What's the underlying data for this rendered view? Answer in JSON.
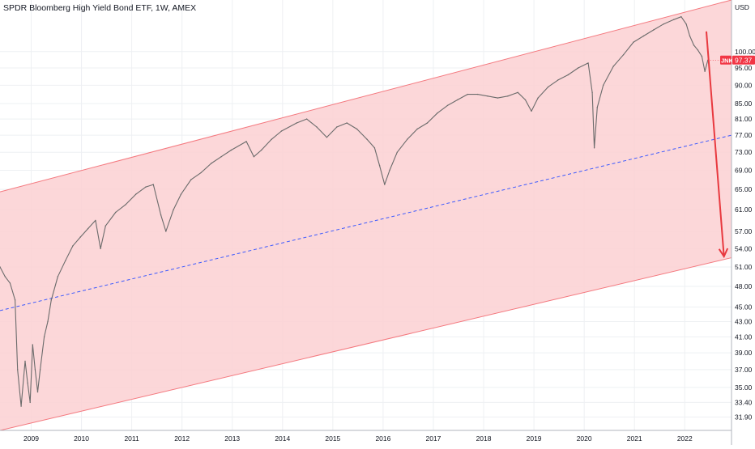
{
  "header": {
    "title": "SPDR Bloomberg High Yield Bond ETF, 1W, AMEX"
  },
  "price_scale": {
    "unit": "USD"
  },
  "last_price_tag": {
    "symbol": "JNK",
    "price": "97.37",
    "color": "#f23645"
  },
  "colors": {
    "channel_fill": "#fbd0d2",
    "channel_line": "#f4797f",
    "midline": "#3d5afe",
    "arrow": "#e8393f",
    "candles": "#6b6b6b",
    "grid": "#eef0f3"
  },
  "chart_data": {
    "type": "line",
    "title": "SPDR Bloomberg High Yield Bond ETF, 1W, AMEX",
    "xlabel": "",
    "ylabel": "USD",
    "scale": "log",
    "ylim": [
      30.6,
      117.5
    ],
    "xlim": [
      2008.4,
      2022.95
    ],
    "grid": true,
    "x_ticks": [
      "2009",
      "2010",
      "2011",
      "2012",
      "2013",
      "2014",
      "2015",
      "2016",
      "2017",
      "2018",
      "2019",
      "2020",
      "2021",
      "2022"
    ],
    "y_ticks": [
      "100.00",
      "95.00",
      "90.00",
      "85.00",
      "81.00",
      "77.00",
      "73.00",
      "69.00",
      "65.00",
      "61.00",
      "57.00",
      "54.00",
      "51.00",
      "48.00",
      "45.00",
      "43.00",
      "41.00",
      "39.00",
      "37.00",
      "35.00",
      "33.40",
      "31.90"
    ],
    "series": [
      {
        "values": [
          [
            2008.4,
            51.0
          ],
          [
            2008.5,
            49.5
          ],
          [
            2008.6,
            48.5
          ],
          [
            2008.7,
            46.0
          ],
          [
            2008.75,
            37.0
          ],
          [
            2008.82,
            33.0
          ],
          [
            2008.9,
            38.0
          ],
          [
            2008.95,
            35.5
          ],
          [
            2009.0,
            33.4
          ],
          [
            2009.05,
            40.0
          ],
          [
            2009.1,
            37.0
          ],
          [
            2009.15,
            34.5
          ],
          [
            2009.2,
            37.0
          ],
          [
            2009.28,
            41.0
          ],
          [
            2009.35,
            43.0
          ],
          [
            2009.42,
            46.0
          ],
          [
            2009.55,
            49.5
          ],
          [
            2009.7,
            52.0
          ],
          [
            2009.85,
            54.5
          ],
          [
            2010.0,
            56.0
          ],
          [
            2010.15,
            57.5
          ],
          [
            2010.3,
            59.0
          ],
          [
            2010.4,
            54.0
          ],
          [
            2010.5,
            58.0
          ],
          [
            2010.7,
            60.5
          ],
          [
            2010.9,
            62.0
          ],
          [
            2011.1,
            64.0
          ],
          [
            2011.3,
            65.5
          ],
          [
            2011.45,
            66.0
          ],
          [
            2011.6,
            60.0
          ],
          [
            2011.7,
            57.0
          ],
          [
            2011.85,
            61.0
          ],
          [
            2012.0,
            64.0
          ],
          [
            2012.2,
            67.0
          ],
          [
            2012.4,
            68.5
          ],
          [
            2012.6,
            70.5
          ],
          [
            2012.8,
            72.0
          ],
          [
            2013.0,
            73.5
          ],
          [
            2013.3,
            75.5
          ],
          [
            2013.45,
            72.0
          ],
          [
            2013.6,
            73.5
          ],
          [
            2013.8,
            76.0
          ],
          [
            2014.0,
            78.0
          ],
          [
            2014.3,
            80.0
          ],
          [
            2014.5,
            81.0
          ],
          [
            2014.7,
            79.0
          ],
          [
            2014.9,
            76.5
          ],
          [
            2015.1,
            79.0
          ],
          [
            2015.3,
            80.0
          ],
          [
            2015.5,
            78.5
          ],
          [
            2015.7,
            76.0
          ],
          [
            2015.85,
            74.0
          ],
          [
            2015.95,
            70.0
          ],
          [
            2016.05,
            66.0
          ],
          [
            2016.15,
            69.0
          ],
          [
            2016.3,
            73.0
          ],
          [
            2016.5,
            76.0
          ],
          [
            2016.7,
            78.5
          ],
          [
            2016.9,
            80.0
          ],
          [
            2017.1,
            82.5
          ],
          [
            2017.3,
            84.5
          ],
          [
            2017.5,
            86.0
          ],
          [
            2017.7,
            87.5
          ],
          [
            2017.9,
            87.5
          ],
          [
            2018.1,
            87.0
          ],
          [
            2018.3,
            86.5
          ],
          [
            2018.5,
            87.0
          ],
          [
            2018.7,
            88.0
          ],
          [
            2018.85,
            86.0
          ],
          [
            2018.97,
            83.0
          ],
          [
            2019.1,
            86.5
          ],
          [
            2019.3,
            89.5
          ],
          [
            2019.5,
            91.5
          ],
          [
            2019.7,
            93.0
          ],
          [
            2019.9,
            95.0
          ],
          [
            2020.1,
            96.5
          ],
          [
            2020.18,
            88.0
          ],
          [
            2020.22,
            74.0
          ],
          [
            2020.28,
            84.0
          ],
          [
            2020.4,
            90.0
          ],
          [
            2020.6,
            95.5
          ],
          [
            2020.8,
            99.0
          ],
          [
            2021.0,
            103.0
          ],
          [
            2021.2,
            105.0
          ],
          [
            2021.4,
            107.0
          ],
          [
            2021.6,
            109.0
          ],
          [
            2021.8,
            110.5
          ],
          [
            2021.95,
            111.5
          ],
          [
            2022.05,
            109.0
          ],
          [
            2022.12,
            105.0
          ],
          [
            2022.2,
            102.0
          ],
          [
            2022.28,
            100.5
          ],
          [
            2022.36,
            98.5
          ],
          [
            2022.42,
            94.0
          ],
          [
            2022.48,
            97.37
          ]
        ]
      }
    ],
    "channel": {
      "upper": [
        [
          2008.4,
          64.5
        ],
        [
          2022.95,
          117.5
        ]
      ],
      "middle": [
        [
          2008.4,
          44.5
        ],
        [
          2022.95,
          77.0
        ]
      ],
      "lower": [
        [
          2008.4,
          30.6
        ],
        [
          2022.95,
          52.5
        ]
      ]
    },
    "arrow": {
      "from": [
        2022.45,
        106.5
      ],
      "to": [
        2022.8,
        52.7
      ]
    }
  }
}
